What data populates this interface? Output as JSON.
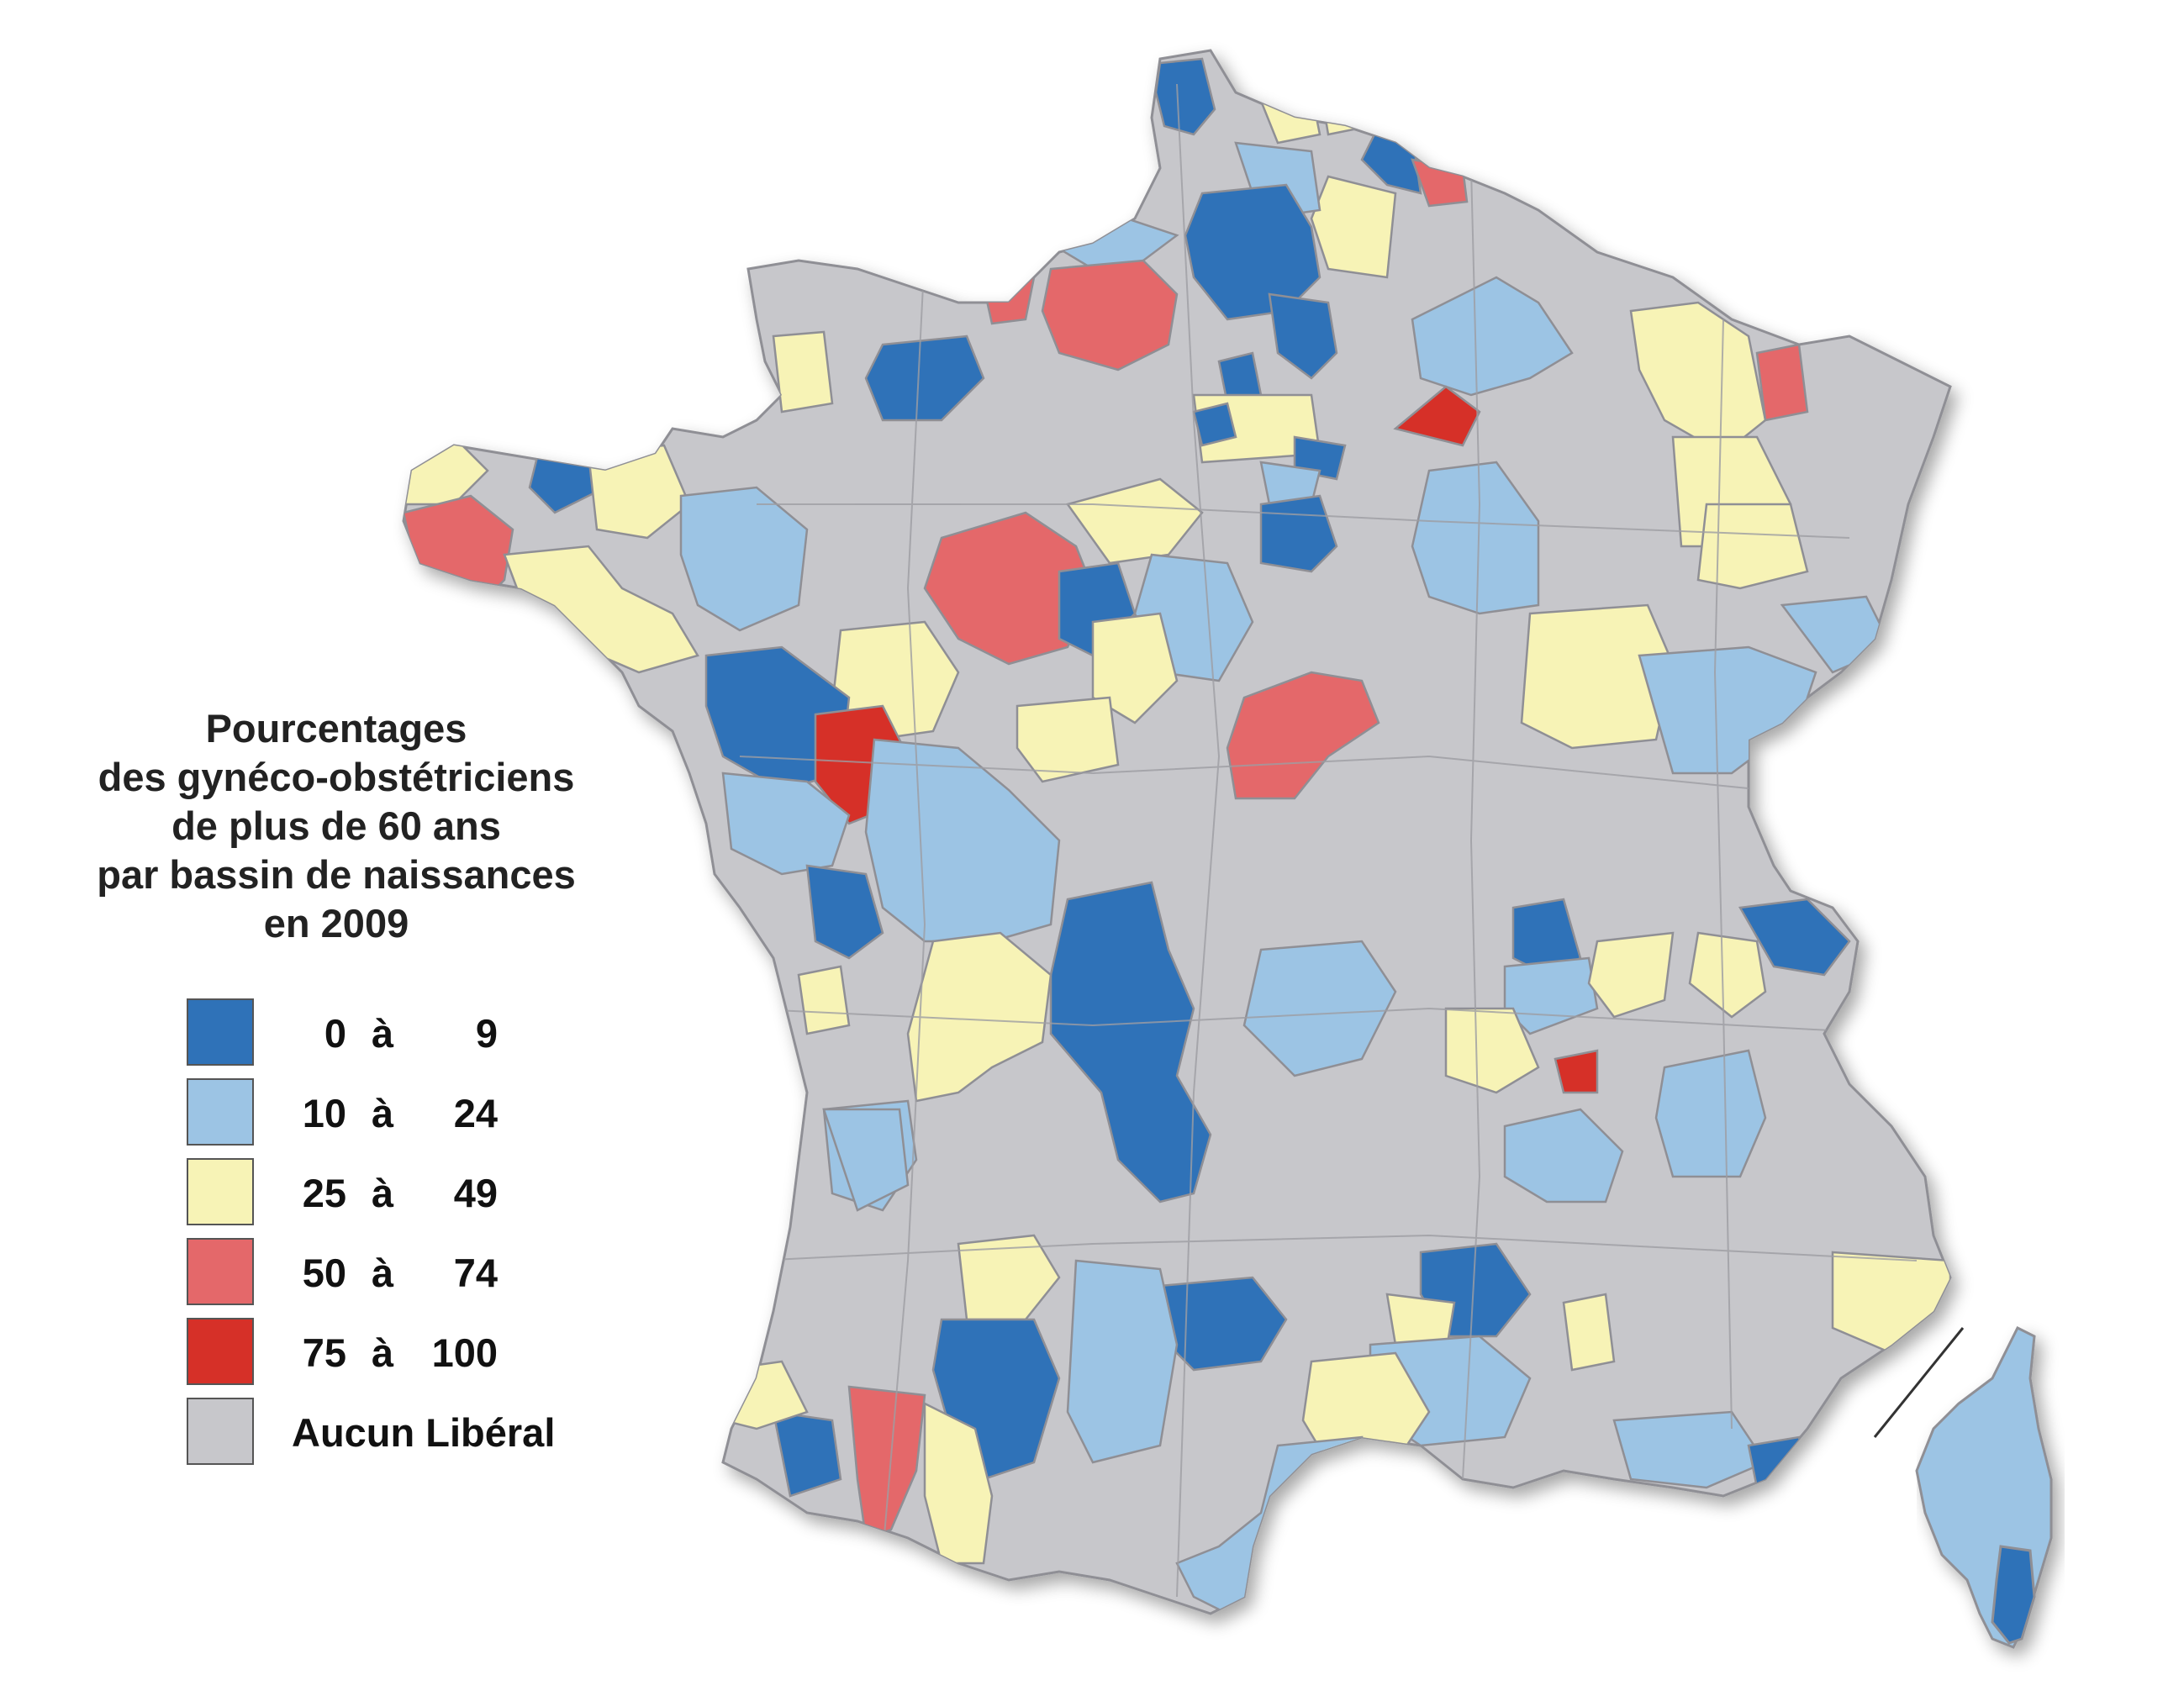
{
  "title": {
    "lines": [
      "Pourcentages",
      "des gynéco-obstétriciens",
      "de plus de 60 ans",
      "par bassin de naissances",
      "en 2009"
    ]
  },
  "legend": {
    "classes": [
      {
        "lo": "0",
        "sep": "à",
        "hi": "9",
        "color": "#2f72b8"
      },
      {
        "lo": "10",
        "sep": "à",
        "hi": "24",
        "color": "#9cc4e4"
      },
      {
        "lo": "25",
        "sep": "à",
        "hi": "49",
        "color": "#f7f3b6"
      },
      {
        "lo": "50",
        "sep": "à",
        "hi": "74",
        "color": "#e4686a"
      },
      {
        "lo": "75",
        "sep": "à",
        "hi": "100",
        "color": "#d63028"
      }
    ],
    "none": {
      "label": "Aucun Libéral",
      "color": "#c7c7cb"
    }
  },
  "colors": {
    "land": "#c7c7cb",
    "border": "#8f8f95",
    "background": "#ffffff"
  }
}
